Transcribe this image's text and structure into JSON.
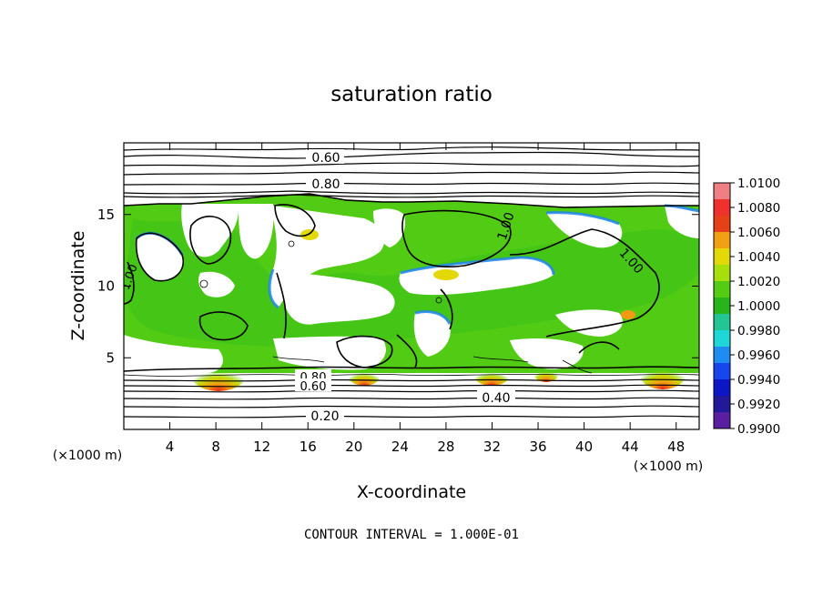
{
  "chart_data": {
    "type": "heatmap",
    "title": "saturation ratio",
    "xlabel": "X-coordinate",
    "ylabel": "Z-coordinate",
    "x_unit": "(×1000 m)",
    "y_unit": "(×1000 m)",
    "xlim": [
      0,
      50
    ],
    "ylim": [
      0,
      20
    ],
    "x_ticks": [
      4,
      8,
      12,
      16,
      20,
      24,
      28,
      32,
      36,
      40,
      44,
      48
    ],
    "y_ticks": [
      5,
      10,
      15
    ],
    "footer": "CONTOUR INTERVAL = 1.000E-01",
    "contour_labels": [
      "0.60",
      "0.80",
      "1.00",
      "1.00",
      "1.00",
      "0.80",
      "0.60",
      "0.40",
      "0.20"
    ],
    "colorbar": {
      "min": 0.99,
      "max": 1.01,
      "ticks": [
        "1.0100",
        "1.0080",
        "1.0060",
        "1.0040",
        "1.0020",
        "1.0000",
        "0.9980",
        "0.9960",
        "0.9940",
        "0.9920",
        "0.9900"
      ],
      "colors": [
        "#f07f85",
        "#f0302c",
        "#e64018",
        "#f3a114",
        "#e3d808",
        "#a6df0c",
        "#54cc14",
        "#28b51a",
        "#22c694",
        "#1ed7d7",
        "#1e8cf0",
        "#1846ee",
        "#0c16c6",
        "#22189a",
        "#5a1ea0"
      ]
    }
  }
}
